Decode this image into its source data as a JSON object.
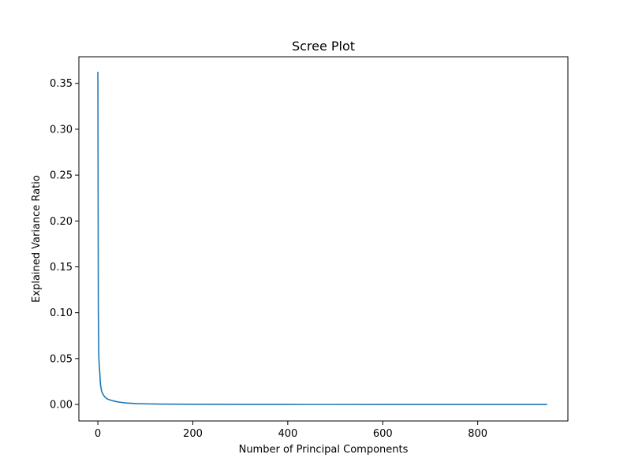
{
  "chart_data": {
    "type": "line",
    "title": "Scree Plot",
    "xlabel": "Number of Principal Components",
    "ylabel": "Explained Variance Ratio",
    "xlim": [
      -40,
      990
    ],
    "ylim": [
      -0.018,
      0.379
    ],
    "xticks": [
      0,
      200,
      400,
      600,
      800
    ],
    "xtick_labels": [
      "0",
      "200",
      "400",
      "600",
      "800"
    ],
    "yticks": [
      0.0,
      0.05,
      0.1,
      0.15,
      0.2,
      0.25,
      0.3,
      0.35
    ],
    "ytick_labels": [
      "0.00",
      "0.05",
      "0.10",
      "0.15",
      "0.20",
      "0.25",
      "0.30",
      "0.35"
    ],
    "grid": false,
    "legend": "none",
    "colors": {
      "line": "#1f77b4",
      "axes": "#000000",
      "background": "#ffffff"
    },
    "series": [
      {
        "x": [
          0,
          1,
          2,
          3,
          4,
          5,
          6,
          8,
          10,
          12,
          15,
          20,
          25,
          30,
          40,
          50,
          60,
          80,
          100,
          130,
          160,
          200,
          300,
          400,
          500,
          600,
          700,
          800,
          900,
          945
        ],
        "values": [
          0.362,
          0.1,
          0.052,
          0.042,
          0.035,
          0.025,
          0.02,
          0.014,
          0.012,
          0.01,
          0.008,
          0.006,
          0.005,
          0.0042,
          0.003,
          0.0022,
          0.0016,
          0.001,
          0.0007,
          0.0004,
          0.0003,
          0.0002,
          0.0001,
          6e-05,
          4e-05,
          3e-05,
          2e-05,
          1e-05,
          5e-06,
          0.0
        ]
      }
    ]
  }
}
